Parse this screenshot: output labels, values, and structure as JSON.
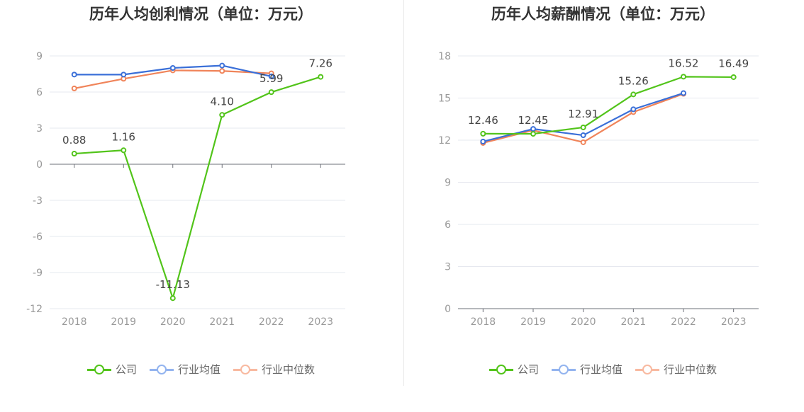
{
  "colors": {
    "company": "#52c41a",
    "industry_avg": "#3a6fd8",
    "industry_median": "#f0845a",
    "legend_avg": "#93b4ef",
    "legend_median": "#f8b9a0"
  },
  "legend": {
    "company": "公司",
    "industry_avg": "行业均值",
    "industry_median": "行业中位数"
  },
  "chart_data": [
    {
      "type": "line",
      "title": "历年人均创利情况（单位：万元）",
      "categories": [
        "2018",
        "2019",
        "2020",
        "2021",
        "2022",
        "2023"
      ],
      "ylim": [
        -12,
        9
      ],
      "yticks": [
        9,
        6,
        3,
        0,
        -3,
        -6,
        -9,
        -12
      ],
      "series": [
        {
          "name": "公司",
          "key": "company",
          "values": [
            0.88,
            1.16,
            -11.13,
            4.1,
            5.99,
            7.26
          ],
          "labels": [
            "0.88",
            "1.16",
            "-11.13",
            "4.10",
            "5.99",
            "7.26"
          ]
        },
        {
          "name": "行业均值",
          "key": "industry_avg",
          "values": [
            7.45,
            7.45,
            8.0,
            8.2,
            7.3,
            null
          ]
        },
        {
          "name": "行业中位数",
          "key": "industry_median",
          "values": [
            6.3,
            7.1,
            7.8,
            7.75,
            7.55,
            null
          ]
        }
      ]
    },
    {
      "type": "line",
      "title": "历年人均薪酬情况（单位：万元）",
      "categories": [
        "2018",
        "2019",
        "2020",
        "2021",
        "2022",
        "2023"
      ],
      "ylim": [
        0,
        18
      ],
      "yticks": [
        18,
        15,
        12,
        9,
        6,
        3,
        0
      ],
      "series": [
        {
          "name": "公司",
          "key": "company",
          "values": [
            12.46,
            12.45,
            12.91,
            15.26,
            16.52,
            16.49
          ],
          "labels": [
            "12.46",
            "12.45",
            "12.91",
            "15.26",
            "16.52",
            "16.49"
          ]
        },
        {
          "name": "行业均值",
          "key": "industry_avg",
          "values": [
            11.9,
            12.8,
            12.35,
            14.2,
            15.35,
            null
          ]
        },
        {
          "name": "行业中位数",
          "key": "industry_median",
          "values": [
            11.8,
            12.7,
            11.85,
            14.0,
            15.3,
            null
          ]
        }
      ]
    }
  ]
}
